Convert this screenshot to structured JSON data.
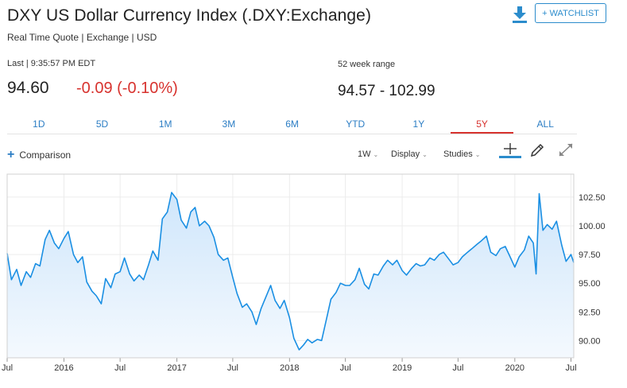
{
  "header": {
    "title": "DXY US Dollar Currency Index (.DXY:Exchange)",
    "subtitle": "Real Time Quote | Exchange | USD",
    "watchlist_label": "+ WATCHLIST"
  },
  "quote": {
    "last_label": "Last | 9:35:57 PM EDT",
    "price": "94.60",
    "change": "-0.09 (-0.10%)",
    "change_color": "#d7322e",
    "range_label": "52 week range",
    "range_value": "94.57 - 102.99"
  },
  "tabs": [
    {
      "label": "1D"
    },
    {
      "label": "5D"
    },
    {
      "label": "1M"
    },
    {
      "label": "3M"
    },
    {
      "label": "6M"
    },
    {
      "label": "YTD"
    },
    {
      "label": "1Y"
    },
    {
      "label": "5Y"
    },
    {
      "label": "ALL"
    }
  ],
  "active_tab": "5Y",
  "toolbar": {
    "comparison": "Comparison",
    "interval": "1W",
    "display": "Display",
    "studies": "Studies"
  },
  "icons": {
    "download": "download-icon",
    "crosshair": "crosshair-icon",
    "draw": "pencil-icon",
    "expand": "expand-icon"
  },
  "chart_data": {
    "type": "area",
    "line_color": "#1a8fe3",
    "fill_color": "#cfe6fb",
    "ylim": [
      88.5,
      104.5
    ],
    "xlim": [
      "2015-07-01",
      "2020-07-10"
    ],
    "y_ticks": [
      90,
      92.5,
      95,
      97.5,
      100,
      102.5
    ],
    "y_tick_labels": [
      "90.00",
      "92.50",
      "95.00",
      "97.50",
      "100.00",
      "102.50"
    ],
    "x_ticks": [
      "2015-07-01",
      "2016-01-01",
      "2016-07-01",
      "2017-01-01",
      "2017-07-01",
      "2018-01-01",
      "2018-07-01",
      "2019-01-01",
      "2019-07-01",
      "2020-01-01",
      "2020-07-01"
    ],
    "x_tick_labels": [
      "Jul",
      "2016",
      "Jul",
      "2017",
      "Jul",
      "2018",
      "Jul",
      "2019",
      "Jul",
      "2020",
      "Jul"
    ],
    "grid": true,
    "series": [
      {
        "x": [
          "2015-07-01",
          "2015-07-15",
          "2015-08-01",
          "2015-08-15",
          "2015-09-01",
          "2015-09-15",
          "2015-10-01",
          "2015-10-15",
          "2015-11-01",
          "2015-11-15",
          "2015-12-01",
          "2015-12-15",
          "2016-01-01",
          "2016-01-15",
          "2016-02-01",
          "2016-02-15",
          "2016-03-01",
          "2016-03-15",
          "2016-04-01",
          "2016-04-15",
          "2016-05-01",
          "2016-05-15",
          "2016-06-01",
          "2016-06-15",
          "2016-07-01",
          "2016-07-15",
          "2016-08-01",
          "2016-08-15",
          "2016-09-01",
          "2016-09-15",
          "2016-10-01",
          "2016-10-15",
          "2016-11-01",
          "2016-11-15",
          "2016-12-01",
          "2016-12-15",
          "2017-01-01",
          "2017-01-15",
          "2017-02-01",
          "2017-02-15",
          "2017-03-01",
          "2017-03-15",
          "2017-04-01",
          "2017-04-15",
          "2017-05-01",
          "2017-05-15",
          "2017-06-01",
          "2017-06-15",
          "2017-07-01",
          "2017-07-15",
          "2017-08-01",
          "2017-08-15",
          "2017-09-01",
          "2017-09-15",
          "2017-10-01",
          "2017-10-15",
          "2017-11-01",
          "2017-11-15",
          "2017-12-01",
          "2017-12-15",
          "2018-01-01",
          "2018-01-15",
          "2018-02-01",
          "2018-02-15",
          "2018-03-01",
          "2018-03-15",
          "2018-04-01",
          "2018-04-15",
          "2018-05-01",
          "2018-05-15",
          "2018-06-01",
          "2018-06-15",
          "2018-07-01",
          "2018-07-15",
          "2018-08-01",
          "2018-08-15",
          "2018-09-01",
          "2018-09-15",
          "2018-10-01",
          "2018-10-15",
          "2018-11-01",
          "2018-11-15",
          "2018-12-01",
          "2018-12-15",
          "2019-01-01",
          "2019-01-15",
          "2019-02-01",
          "2019-02-15",
          "2019-03-01",
          "2019-03-15",
          "2019-04-01",
          "2019-04-15",
          "2019-05-01",
          "2019-05-15",
          "2019-06-01",
          "2019-06-15",
          "2019-07-01",
          "2019-07-15",
          "2019-08-01",
          "2019-08-15",
          "2019-09-01",
          "2019-09-15",
          "2019-10-01",
          "2019-10-15",
          "2019-11-01",
          "2019-11-15",
          "2019-12-01",
          "2019-12-15",
          "2020-01-01",
          "2020-01-15",
          "2020-02-01",
          "2020-02-15",
          "2020-03-01",
          "2020-03-10",
          "2020-03-20",
          "2020-04-01",
          "2020-04-15",
          "2020-05-01",
          "2020-05-15",
          "2020-06-01",
          "2020-06-15",
          "2020-07-01",
          "2020-07-10"
        ],
        "y": [
          97.6,
          95.3,
          96.2,
          94.8,
          96.0,
          95.5,
          96.7,
          96.5,
          98.8,
          99.6,
          98.5,
          98.0,
          98.9,
          99.5,
          97.5,
          96.8,
          97.3,
          95.1,
          94.3,
          93.9,
          93.2,
          95.4,
          94.6,
          95.8,
          96.0,
          97.2,
          95.8,
          95.2,
          95.7,
          95.3,
          96.6,
          97.8,
          97.0,
          100.6,
          101.2,
          102.9,
          102.3,
          100.5,
          99.8,
          101.2,
          101.6,
          100.0,
          100.4,
          100.0,
          99.0,
          97.5,
          97.0,
          97.2,
          95.5,
          94.1,
          92.9,
          93.2,
          92.5,
          91.4,
          92.8,
          93.7,
          94.8,
          93.5,
          92.8,
          93.5,
          92.0,
          90.2,
          89.2,
          89.6,
          90.1,
          89.8,
          90.1,
          90.0,
          91.9,
          93.6,
          94.2,
          95.0,
          94.8,
          94.8,
          95.3,
          96.3,
          94.9,
          94.5,
          95.8,
          95.7,
          96.5,
          97.0,
          96.6,
          97.0,
          96.1,
          95.7,
          96.3,
          96.7,
          96.5,
          96.6,
          97.2,
          97.0,
          97.5,
          97.7,
          97.1,
          96.6,
          96.8,
          97.3,
          97.7,
          98.0,
          98.4,
          98.7,
          99.1,
          97.7,
          97.4,
          98.0,
          98.2,
          97.4,
          96.4,
          97.3,
          97.9,
          99.1,
          98.5,
          95.8,
          102.8,
          99.6,
          100.1,
          99.7,
          100.4,
          98.3,
          96.9,
          97.5,
          96.8
        ]
      }
    ]
  }
}
